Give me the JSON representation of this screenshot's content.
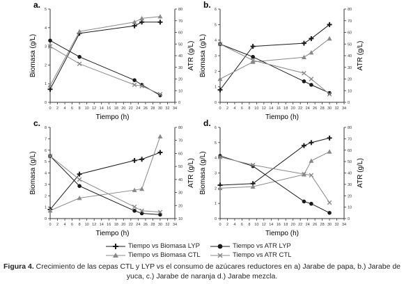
{
  "figure": {
    "caption_label": "Figura 4.",
    "caption_text": " Crecimiento de las cepas CTL y LYP vs el consumo de azúcares reductores en a) Jarabe de papa, b.) Jarabe de yuca, c.) Jarabe de naranja d.) Jarabe mezcla."
  },
  "legend": [
    {
      "label": "Tiempo vs Biomasa LYP",
      "marker": "plus",
      "color": "#1a1a1a"
    },
    {
      "label": "Tiempo vs Biomasa CTL",
      "marker": "triangle",
      "color": "#888888"
    },
    {
      "label": "Tiempo vs ATR LYP",
      "marker": "circle",
      "color": "#1a1a1a"
    },
    {
      "label": "Tiempo vs ATR CTL",
      "marker": "x",
      "color": "#888888"
    }
  ],
  "chart_data": [
    {
      "type": "line",
      "panel_label": "a.",
      "xlabel": "Tiempo (h)",
      "ylabel": "Biomasa (g/L)",
      "y2label": "ATR (g/L)",
      "xlim": [
        0,
        34
      ],
      "xticks": [
        0,
        2,
        4,
        6,
        8,
        10,
        12,
        14,
        16,
        18,
        20,
        22,
        24,
        26,
        28,
        30,
        32,
        34
      ],
      "ylim": [
        0,
        5
      ],
      "yticks": [
        0,
        1,
        2,
        3,
        4,
        5
      ],
      "y2lim": [
        0,
        80
      ],
      "y2ticks": [
        0,
        10,
        20,
        30,
        40,
        50,
        60,
        70,
        80
      ],
      "series": [
        {
          "name": "Tiempo vs Biomasa LYP",
          "axis": "left",
          "marker": "plus",
          "color": "#1a1a1a",
          "x": [
            0,
            8,
            23,
            25,
            30
          ],
          "y": [
            0.7,
            3.7,
            4.1,
            4.3,
            4.3
          ]
        },
        {
          "name": "Tiempo vs Biomasa CTL",
          "axis": "left",
          "marker": "triangle",
          "color": "#888888",
          "x": [
            0,
            8,
            23,
            25,
            30
          ],
          "y": [
            0.9,
            3.8,
            4.3,
            4.5,
            4.6
          ]
        },
        {
          "name": "Tiempo vs ATR LYP",
          "axis": "right",
          "marker": "circle",
          "color": "#1a1a1a",
          "x": [
            0,
            8,
            23,
            25,
            30
          ],
          "y": [
            53,
            39,
            19,
            15,
            6
          ]
        },
        {
          "name": "Tiempo vs ATR CTL",
          "axis": "right",
          "marker": "x",
          "color": "#888888",
          "x": [
            0,
            8,
            23,
            25,
            30
          ],
          "y": [
            48,
            33,
            15,
            14,
            7
          ]
        }
      ]
    },
    {
      "type": "line",
      "panel_label": "b.",
      "xlabel": "Tiempo (h)",
      "ylabel": "Biomasa (g/L)",
      "y2label": "ATR (g/L)",
      "xlim": [
        0,
        34
      ],
      "xticks": [
        0,
        2,
        4,
        6,
        8,
        10,
        12,
        14,
        16,
        18,
        20,
        22,
        24,
        26,
        28,
        30,
        32,
        34
      ],
      "ylim": [
        0,
        6
      ],
      "yticks": [
        0,
        1,
        2,
        3,
        4,
        5,
        6
      ],
      "y2lim": [
        0,
        80
      ],
      "y2ticks": [
        0,
        10,
        20,
        30,
        40,
        50,
        60,
        70,
        80
      ],
      "series": [
        {
          "name": "Tiempo vs Biomasa LYP",
          "axis": "left",
          "marker": "plus",
          "color": "#1a1a1a",
          "x": [
            0,
            9,
            23,
            25,
            30
          ],
          "y": [
            0.8,
            3.6,
            3.8,
            4.1,
            5.0
          ]
        },
        {
          "name": "Tiempo vs Biomasa CTL",
          "axis": "left",
          "marker": "triangle",
          "color": "#888888",
          "x": [
            0,
            9,
            23,
            25,
            30
          ],
          "y": [
            1.5,
            2.6,
            2.9,
            3.2,
            4.1
          ]
        },
        {
          "name": "Tiempo vs ATR LYP",
          "axis": "right",
          "marker": "circle",
          "color": "#1a1a1a",
          "x": [
            0,
            9,
            23,
            25,
            30
          ],
          "y": [
            50,
            39,
            18,
            15,
            8
          ]
        },
        {
          "name": "Tiempo vs ATR CTL",
          "axis": "right",
          "marker": "x",
          "color": "#888888",
          "x": [
            0,
            9,
            23,
            25,
            30
          ],
          "y": [
            50,
            36,
            25,
            20,
            7
          ]
        }
      ]
    },
    {
      "type": "line",
      "panel_label": "c.",
      "xlabel": "Tiempo (h)",
      "ylabel": "Biomasa (g/L)",
      "y2label": "ATR (g/L)",
      "xlim": [
        0,
        34
      ],
      "xticks": [
        0,
        2,
        4,
        6,
        8,
        10,
        12,
        14,
        16,
        18,
        20,
        22,
        24,
        26,
        28,
        30,
        32,
        34
      ],
      "ylim": [
        0,
        8
      ],
      "yticks": [
        0,
        1,
        2,
        3,
        4,
        5,
        6,
        7,
        8
      ],
      "y2lim": [
        10,
        80
      ],
      "y2ticks": [
        10,
        20,
        30,
        40,
        50,
        60,
        70,
        80
      ],
      "series": [
        {
          "name": "Tiempo vs Biomasa LYP",
          "axis": "left",
          "marker": "plus",
          "color": "#1a1a1a",
          "x": [
            0,
            8,
            23,
            25,
            30
          ],
          "y": [
            0.8,
            3.9,
            5.1,
            5.2,
            5.8
          ]
        },
        {
          "name": "Tiempo vs Biomasa CTL",
          "axis": "left",
          "marker": "triangle",
          "color": "#888888",
          "x": [
            0,
            8,
            23,
            25,
            30
          ],
          "y": [
            0.7,
            1.8,
            2.5,
            2.6,
            7.2
          ]
        },
        {
          "name": "Tiempo vs ATR LYP",
          "axis": "right",
          "marker": "circle",
          "color": "#1a1a1a",
          "x": [
            0,
            8,
            23,
            25,
            30
          ],
          "y": [
            58,
            35,
            16,
            14,
            13
          ]
        },
        {
          "name": "Tiempo vs ATR CTL",
          "axis": "right",
          "marker": "x",
          "color": "#888888",
          "x": [
            0,
            8,
            23,
            25,
            30
          ],
          "y": [
            58,
            40,
            19,
            16,
            15
          ]
        }
      ]
    },
    {
      "type": "line",
      "panel_label": "d.",
      "xlabel": "Tiempo (h)",
      "ylabel": "Biomasa (g/L)",
      "y2label": "ATR (g/L)",
      "xlim": [
        0,
        34
      ],
      "xticks": [
        0,
        2,
        4,
        6,
        8,
        10,
        12,
        14,
        16,
        18,
        20,
        22,
        24,
        26,
        28,
        30,
        32,
        34
      ],
      "ylim": [
        0,
        6
      ],
      "yticks": [
        0,
        1,
        2,
        3,
        4,
        5,
        6
      ],
      "y2lim": [
        0,
        80
      ],
      "y2ticks": [
        0,
        10,
        20,
        30,
        40,
        50,
        60,
        70,
        80
      ],
      "series": [
        {
          "name": "Tiempo vs Biomasa LYP",
          "axis": "left",
          "marker": "plus",
          "color": "#1a1a1a",
          "x": [
            0,
            9,
            23,
            25,
            30
          ],
          "y": [
            2.2,
            2.3,
            4.8,
            5.0,
            5.3
          ]
        },
        {
          "name": "Tiempo vs Biomasa CTL",
          "axis": "left",
          "marker": "triangle",
          "color": "#888888",
          "x": [
            0,
            9,
            23,
            25,
            30
          ],
          "y": [
            2.0,
            2.1,
            2.9,
            3.8,
            4.4
          ]
        },
        {
          "name": "Tiempo vs ATR LYP",
          "axis": "right",
          "marker": "circle",
          "color": "#1a1a1a",
          "x": [
            0,
            9,
            23,
            25,
            30
          ],
          "y": [
            55,
            46,
            15,
            13,
            5
          ]
        },
        {
          "name": "Tiempo vs ATR CTL",
          "axis": "right",
          "marker": "x",
          "color": "#888888",
          "x": [
            0,
            9,
            23,
            25,
            30
          ],
          "y": [
            54,
            47,
            39,
            38,
            14
          ]
        }
      ]
    }
  ]
}
